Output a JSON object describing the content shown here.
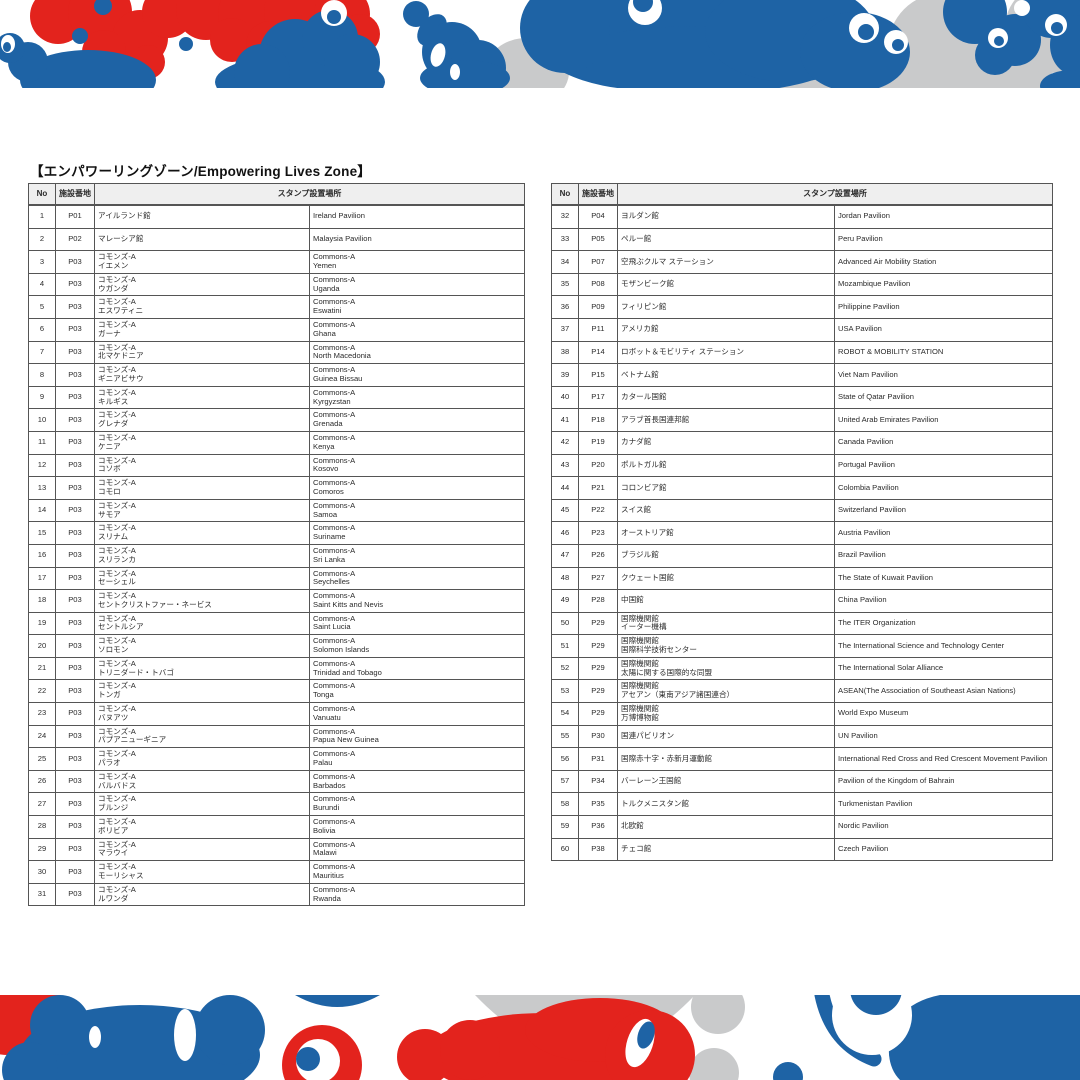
{
  "page": {
    "title": "【エンパワーリングゾーン/Empowering Lives Zone】",
    "zone_name_jp": "エンパワーリングゾーン",
    "zone_name_en": "Empowering Lives Zone"
  },
  "colors": {
    "red": "#E3231D",
    "blue": "#1E63A5",
    "gray": "#C9CACB",
    "header_bg": "#EFEFEF",
    "border": "#555555"
  },
  "tables": [
    {
      "headers": {
        "no": "No",
        "code": "施設番地",
        "location": "スタンプ設置場所"
      },
      "rows": [
        {
          "no": "1",
          "code": "P01",
          "jp": "アイルランド館",
          "en": "Ireland Pavilion"
        },
        {
          "no": "2",
          "code": "P02",
          "jp": "マレーシア館",
          "en": "Malaysia Pavilion"
        },
        {
          "no": "3",
          "code": "P03",
          "jp": "コモンズ-A\nイエメン",
          "en": "Commons-A\nYemen"
        },
        {
          "no": "4",
          "code": "P03",
          "jp": "コモンズ-A\nウガンダ",
          "en": "Commons-A\nUganda"
        },
        {
          "no": "5",
          "code": "P03",
          "jp": "コモンズ-A\nエスワティニ",
          "en": "Commons-A\nEswatini"
        },
        {
          "no": "6",
          "code": "P03",
          "jp": "コモンズ-A\nガーナ",
          "en": "Commons-A\nGhana"
        },
        {
          "no": "7",
          "code": "P03",
          "jp": "コモンズ-A\n北マケドニア",
          "en": "Commons-A\nNorth Macedonia"
        },
        {
          "no": "8",
          "code": "P03",
          "jp": "コモンズ-A\nギニアビサウ",
          "en": "Commons-A\nGuinea Bissau"
        },
        {
          "no": "9",
          "code": "P03",
          "jp": "コモンズ-A\nキルギス",
          "en": "Commons-A\nKyrgyzstan"
        },
        {
          "no": "10",
          "code": "P03",
          "jp": "コモンズ-A\nグレナダ",
          "en": "Commons-A\nGrenada"
        },
        {
          "no": "11",
          "code": "P03",
          "jp": "コモンズ-A\nケニア",
          "en": "Commons-A\nKenya"
        },
        {
          "no": "12",
          "code": "P03",
          "jp": "コモンズ-A\nコソボ",
          "en": "Commons-A\nKosovo"
        },
        {
          "no": "13",
          "code": "P03",
          "jp": "コモンズ-A\nコモロ",
          "en": "Commons-A\nComoros"
        },
        {
          "no": "14",
          "code": "P03",
          "jp": "コモンズ-A\nサモア",
          "en": "Commons-A\nSamoa"
        },
        {
          "no": "15",
          "code": "P03",
          "jp": "コモンズ-A\nスリナム",
          "en": "Commons-A\nSuriname"
        },
        {
          "no": "16",
          "code": "P03",
          "jp": "コモンズ-A\nスリランカ",
          "en": "Commons-A\nSri Lanka"
        },
        {
          "no": "17",
          "code": "P03",
          "jp": "コモンズ-A\nセーシェル",
          "en": "Commons-A\nSeychelles"
        },
        {
          "no": "18",
          "code": "P03",
          "jp": "コモンズ-A\nセントクリストファー・ネービス",
          "en": "Commons-A\nSaint Kitts and Nevis"
        },
        {
          "no": "19",
          "code": "P03",
          "jp": "コモンズ-A\nセントルシア",
          "en": "Commons-A\nSaint Lucia"
        },
        {
          "no": "20",
          "code": "P03",
          "jp": "コモンズ-A\nソロモン",
          "en": "Commons-A\nSolomon Islands"
        },
        {
          "no": "21",
          "code": "P03",
          "jp": "コモンズ-A\nトリニダード・トバゴ",
          "en": "Commons-A\nTrinidad and Tobago"
        },
        {
          "no": "22",
          "code": "P03",
          "jp": "コモンズ-A\nトンガ",
          "en": "Commons-A\nTonga"
        },
        {
          "no": "23",
          "code": "P03",
          "jp": "コモンズ-A\nバヌアツ",
          "en": "Commons-A\nVanuatu"
        },
        {
          "no": "24",
          "code": "P03",
          "jp": "コモンズ-A\nパプアニューギニア",
          "en": "Commons-A\nPapua New Guinea"
        },
        {
          "no": "25",
          "code": "P03",
          "jp": "コモンズ-A\nパラオ",
          "en": "Commons-A\nPalau"
        },
        {
          "no": "26",
          "code": "P03",
          "jp": "コモンズ-A\nバルバドス",
          "en": "Commons-A\nBarbados"
        },
        {
          "no": "27",
          "code": "P03",
          "jp": "コモンズ-A\nブルンジ",
          "en": "Commons-A\nBurundi"
        },
        {
          "no": "28",
          "code": "P03",
          "jp": "コモンズ-A\nボリビア",
          "en": "Commons-A\nBolivia"
        },
        {
          "no": "29",
          "code": "P03",
          "jp": "コモンズ-A\nマラウイ",
          "en": "Commons-A\nMalawi"
        },
        {
          "no": "30",
          "code": "P03",
          "jp": "コモンズ-A\nモーリシャス",
          "en": "Commons-A\nMauritius"
        },
        {
          "no": "31",
          "code": "P03",
          "jp": "コモンズ-A\nルワンダ",
          "en": "Commons-A\nRwanda"
        }
      ]
    },
    {
      "headers": {
        "no": "No",
        "code": "施設番地",
        "location": "スタンプ設置場所"
      },
      "rows": [
        {
          "no": "32",
          "code": "P04",
          "jp": "ヨルダン館",
          "en": "Jordan Pavilion"
        },
        {
          "no": "33",
          "code": "P05",
          "jp": "ペルー館",
          "en": "Peru Pavilion"
        },
        {
          "no": "34",
          "code": "P07",
          "jp": "空飛ぶクルマ ステーション",
          "en": "Advanced Air Mobility Station"
        },
        {
          "no": "35",
          "code": "P08",
          "jp": "モザンビーク館",
          "en": "Mozambique Pavilion"
        },
        {
          "no": "36",
          "code": "P09",
          "jp": "フィリピン館",
          "en": "Philippine Pavilion"
        },
        {
          "no": "37",
          "code": "P11",
          "jp": "アメリカ館",
          "en": "USA Pavilion"
        },
        {
          "no": "38",
          "code": "P14",
          "jp": "ロボット＆モビリティ ステーション",
          "en": "ROBOT & MOBILITY STATION"
        },
        {
          "no": "39",
          "code": "P15",
          "jp": "ベトナム館",
          "en": "Viet Nam Pavilion"
        },
        {
          "no": "40",
          "code": "P17",
          "jp": "カタール国館",
          "en": "State of Qatar Pavilion"
        },
        {
          "no": "41",
          "code": "P18",
          "jp": "アラブ首長国連邦館",
          "en": "United Arab Emirates Pavilion"
        },
        {
          "no": "42",
          "code": "P19",
          "jp": "カナダ館",
          "en": "Canada Pavilion"
        },
        {
          "no": "43",
          "code": "P20",
          "jp": "ポルトガル館",
          "en": "Portugal Pavilion"
        },
        {
          "no": "44",
          "code": "P21",
          "jp": "コロンビア館",
          "en": "Colombia Pavilion"
        },
        {
          "no": "45",
          "code": "P22",
          "jp": "スイス館",
          "en": "Switzerland Pavilion"
        },
        {
          "no": "46",
          "code": "P23",
          "jp": "オーストリア館",
          "en": "Austria Pavilion"
        },
        {
          "no": "47",
          "code": "P26",
          "jp": "ブラジル館",
          "en": "Brazil Pavilion"
        },
        {
          "no": "48",
          "code": "P27",
          "jp": "クウェート国館",
          "en": "The State of Kuwait Pavilion"
        },
        {
          "no": "49",
          "code": "P28",
          "jp": "中国館",
          "en": "China Pavilion"
        },
        {
          "no": "50",
          "code": "P29",
          "jp": "国際機関館\nイーター機構",
          "en": "The ITER Organization"
        },
        {
          "no": "51",
          "code": "P29",
          "jp": "国際機関館\n国際科学技術センター",
          "en": "The International Science and Technology Center"
        },
        {
          "no": "52",
          "code": "P29",
          "jp": "国際機関館\n太陽に関する国際的な同盟",
          "en": "The International Solar Alliance"
        },
        {
          "no": "53",
          "code": "P29",
          "jp": "国際機関館\nアセアン（東南アジア諸国連合）",
          "en": "ASEAN(The Association of Southeast Asian Nations)"
        },
        {
          "no": "54",
          "code": "P29",
          "jp": "国際機関館\n万博博物館",
          "en": "World Expo Museum"
        },
        {
          "no": "55",
          "code": "P30",
          "jp": "国連パビリオン",
          "en": "UN Pavilion"
        },
        {
          "no": "56",
          "code": "P31",
          "jp": "国際赤十字・赤新月運動館",
          "en": "International Red Cross and Red Crescent Movement Pavilion"
        },
        {
          "no": "57",
          "code": "P34",
          "jp": "バーレーン王国館",
          "en": "Pavilion of the Kingdom of Bahrain"
        },
        {
          "no": "58",
          "code": "P35",
          "jp": "トルクメニスタン館",
          "en": "Turkmenistan Pavilion"
        },
        {
          "no": "59",
          "code": "P36",
          "jp": "北欧館",
          "en": "Nordic Pavilion"
        },
        {
          "no": "60",
          "code": "P38",
          "jp": "チェコ館",
          "en": "Czech Pavilion"
        }
      ]
    }
  ]
}
